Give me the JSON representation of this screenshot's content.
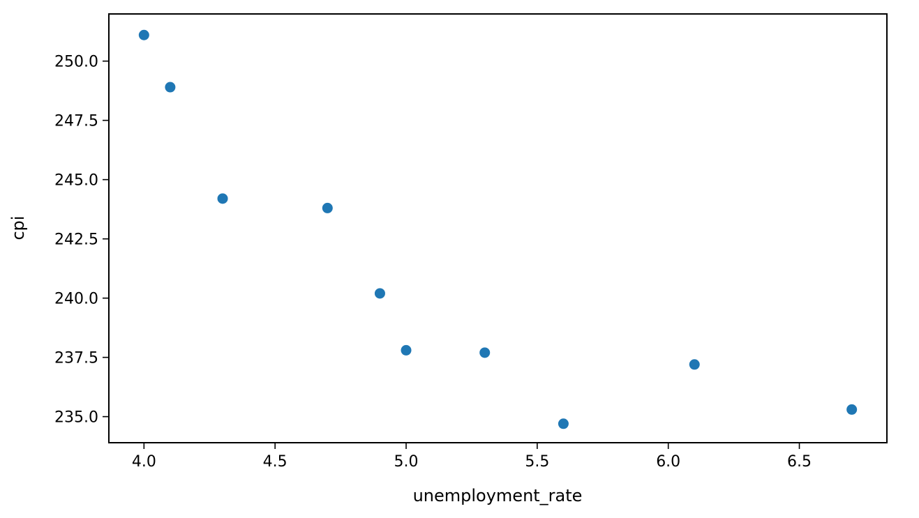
{
  "chart_data": {
    "type": "scatter",
    "title": "",
    "xlabel": "unemployment_rate",
    "ylabel": "cpi",
    "xlim": [
      3.866,
      6.834
    ],
    "ylim": [
      233.9,
      251.99
    ],
    "grid": false,
    "legend": "none",
    "x_ticks": [
      4.0,
      4.5,
      5.0,
      5.5,
      6.0,
      6.5
    ],
    "x_tick_labels": [
      "4.0",
      "4.5",
      "5.0",
      "5.5",
      "6.0",
      "6.5"
    ],
    "y_ticks": [
      235.0,
      237.5,
      240.0,
      242.5,
      245.0,
      247.5,
      250.0
    ],
    "y_tick_labels": [
      "235.0",
      "237.5",
      "240.0",
      "242.5",
      "245.0",
      "247.5",
      "250.0"
    ],
    "series": [
      {
        "color": "#1f77b4",
        "x": [
          4.0,
          4.1,
          4.3,
          4.7,
          4.9,
          5.0,
          5.3,
          5.6,
          6.1,
          6.7
        ],
        "y": [
          251.1,
          248.9,
          244.2,
          243.8,
          240.2,
          237.8,
          237.7,
          234.7,
          237.2,
          235.3
        ]
      }
    ]
  }
}
